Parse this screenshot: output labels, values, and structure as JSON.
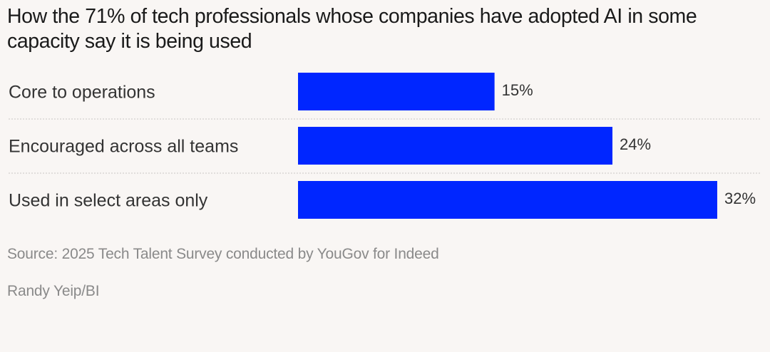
{
  "chart_data": {
    "type": "bar",
    "orientation": "horizontal",
    "title": "How the 71% of tech professionals whose companies have adopted AI in some capacity say it is being used",
    "categories": [
      "Core to operations",
      "Encouraged across all teams",
      "Used in select areas only"
    ],
    "values": [
      15,
      24,
      32
    ],
    "value_labels": [
      "15%",
      "24%",
      "32%"
    ],
    "unit": "%",
    "xlim": [
      0,
      32
    ],
    "bar_color": "#0026ff",
    "grid": false,
    "legend": "none"
  },
  "footer": {
    "source": "Source: 2025 Tech Talent Survey conducted by YouGov for Indeed",
    "credit": "Randy Yeip/BI"
  }
}
